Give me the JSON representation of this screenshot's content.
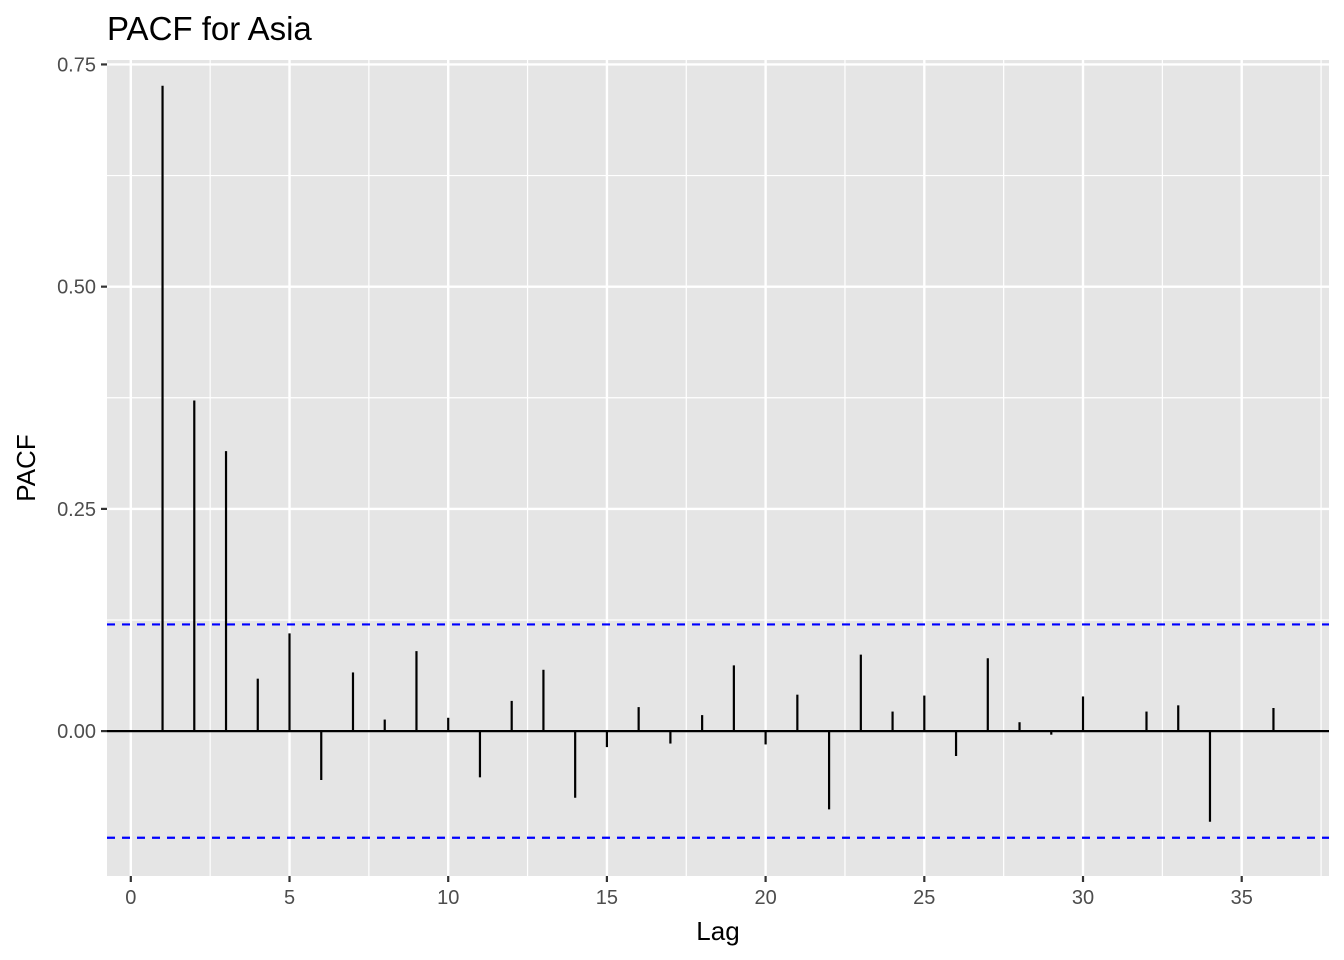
{
  "chart_data": {
    "type": "bar",
    "title": "PACF for Asia",
    "xlabel": "Lag",
    "ylabel": "PACF",
    "xlim": [
      -0.75,
      37.75
    ],
    "ylim": [
      -0.163,
      0.755
    ],
    "x_ticks": [
      0,
      5,
      10,
      15,
      20,
      25,
      30,
      35
    ],
    "x_tick_labels": [
      "0",
      "5",
      "10",
      "15",
      "20",
      "25",
      "30",
      "35"
    ],
    "y_ticks": [
      0.0,
      0.25,
      0.5,
      0.75
    ],
    "y_tick_labels": [
      "0.00",
      "0.25",
      "0.50",
      "0.75"
    ],
    "y_minor_grid": [
      0.125,
      0.375,
      0.625
    ],
    "x_minor_grid": [
      2.5,
      7.5,
      12.5,
      17.5,
      22.5,
      27.5,
      32.5,
      37.5
    ],
    "confidence_bound": 0.12,
    "lags": [
      1,
      2,
      3,
      4,
      5,
      6,
      7,
      8,
      9,
      10,
      11,
      12,
      13,
      14,
      15,
      16,
      17,
      18,
      19,
      20,
      21,
      22,
      23,
      24,
      25,
      26,
      27,
      28,
      29,
      30,
      31,
      32,
      33,
      34,
      35,
      36
    ],
    "values": [
      0.726,
      0.372,
      0.315,
      0.059,
      0.11,
      -0.055,
      0.066,
      0.013,
      0.09,
      0.015,
      -0.052,
      0.034,
      0.069,
      -0.075,
      -0.018,
      0.027,
      -0.014,
      0.018,
      0.074,
      -0.015,
      0.041,
      -0.088,
      0.086,
      0.022,
      0.04,
      -0.028,
      0.082,
      0.01,
      -0.004,
      0.039,
      0.0,
      0.022,
      0.029,
      -0.102,
      0.0,
      0.026
    ],
    "colors": {
      "panel_background": "#e5e5e5",
      "grid": "#ffffff",
      "bar": "#000000",
      "bound_line": "#0000ff",
      "tick_label": "#4d4d4d"
    },
    "grid": true
  }
}
